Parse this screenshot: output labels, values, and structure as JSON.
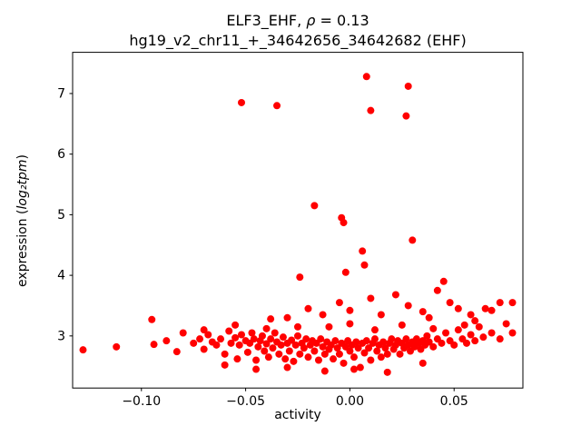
{
  "chart_data": {
    "type": "scatter",
    "title_prefix": "ELF3_EHF, ",
    "title_rho": "ρ",
    "title_suffix": " = 0.13",
    "subtitle": "hg19_v2_chr11_+_34642656_34642682 (EHF)",
    "xlabel": "activity",
    "ylabel_prefix": "expression (",
    "ylabel_math": "log₂tpm",
    "ylabel_suffix": ")",
    "xlim": [
      -0.133,
      0.083
    ],
    "ylim": [
      2.14,
      7.68
    ],
    "xticks": [
      -0.1,
      -0.05,
      0.0,
      0.05
    ],
    "xtick_labels": [
      "−0.10",
      "−0.05",
      "0.00",
      "0.05"
    ],
    "yticks": [
      3,
      4,
      5,
      6,
      7
    ],
    "ytick_labels": [
      "3",
      "4",
      "5",
      "6",
      "7"
    ],
    "grid": false,
    "legend": "none",
    "marker_color": "#ff0000",
    "marker_radius": 4,
    "points": [
      [
        -0.128,
        2.77
      ],
      [
        -0.112,
        2.82
      ],
      [
        -0.095,
        3.27
      ],
      [
        -0.094,
        2.86
      ],
      [
        -0.088,
        2.92
      ],
      [
        -0.083,
        2.74
      ],
      [
        -0.08,
        3.05
      ],
      [
        -0.075,
        2.88
      ],
      [
        -0.072,
        2.95
      ],
      [
        -0.07,
        2.78
      ],
      [
        -0.07,
        3.1
      ],
      [
        -0.068,
        3.02
      ],
      [
        -0.066,
        2.9
      ],
      [
        -0.064,
        2.85
      ],
      [
        -0.062,
        2.95
      ],
      [
        -0.06,
        2.7
      ],
      [
        -0.06,
        2.52
      ],
      [
        -0.058,
        3.08
      ],
      [
        -0.057,
        2.88
      ],
      [
        -0.055,
        2.97
      ],
      [
        -0.055,
        3.18
      ],
      [
        -0.054,
        2.62
      ],
      [
        -0.053,
        2.85
      ],
      [
        -0.052,
        3.02
      ],
      [
        -0.052,
        6.85
      ],
      [
        -0.05,
        2.92
      ],
      [
        -0.049,
        2.73
      ],
      [
        -0.048,
        2.88
      ],
      [
        -0.047,
        3.05
      ],
      [
        -0.046,
        2.95
      ],
      [
        -0.045,
        2.6
      ],
      [
        -0.045,
        2.45
      ],
      [
        -0.044,
        2.82
      ],
      [
        -0.043,
        2.92
      ],
      [
        -0.042,
        3.0
      ],
      [
        -0.041,
        2.75
      ],
      [
        -0.04,
        2.87
      ],
      [
        -0.04,
        3.12
      ],
      [
        -0.039,
        2.65
      ],
      [
        -0.038,
        2.95
      ],
      [
        -0.038,
        3.28
      ],
      [
        -0.037,
        2.8
      ],
      [
        -0.036,
        3.05
      ],
      [
        -0.035,
        2.9
      ],
      [
        -0.035,
        6.8
      ],
      [
        -0.034,
        2.7
      ],
      [
        -0.033,
        2.85
      ],
      [
        -0.032,
        2.98
      ],
      [
        -0.031,
        2.62
      ],
      [
        -0.03,
        2.88
      ],
      [
        -0.03,
        2.48
      ],
      [
        -0.03,
        3.3
      ],
      [
        -0.029,
        2.75
      ],
      [
        -0.028,
        2.93
      ],
      [
        -0.027,
        2.58
      ],
      [
        -0.026,
        2.85
      ],
      [
        -0.025,
        3.0
      ],
      [
        -0.025,
        3.15
      ],
      [
        -0.024,
        2.7
      ],
      [
        -0.024,
        3.97
      ],
      [
        -0.023,
        2.88
      ],
      [
        -0.022,
        2.8
      ],
      [
        -0.021,
        2.95
      ],
      [
        -0.02,
        2.65
      ],
      [
        -0.02,
        3.45
      ],
      [
        -0.019,
        2.85
      ],
      [
        -0.018,
        2.92
      ],
      [
        -0.017,
        2.75
      ],
      [
        -0.017,
        5.15
      ],
      [
        -0.016,
        2.88
      ],
      [
        -0.015,
        2.6
      ],
      [
        -0.014,
        2.95
      ],
      [
        -0.013,
        2.82
      ],
      [
        -0.013,
        3.35
      ],
      [
        -0.012,
        2.7
      ],
      [
        -0.012,
        2.42
      ],
      [
        -0.011,
        2.9
      ],
      [
        -0.01,
        2.78
      ],
      [
        -0.01,
        3.15
      ],
      [
        -0.009,
        2.85
      ],
      [
        -0.008,
        2.62
      ],
      [
        -0.007,
        2.92
      ],
      [
        -0.006,
        2.8
      ],
      [
        -0.005,
        2.7
      ],
      [
        -0.005,
        3.55
      ],
      [
        -0.004,
        2.88
      ],
      [
        -0.004,
        4.95
      ],
      [
        -0.003,
        2.55
      ],
      [
        -0.003,
        4.87
      ],
      [
        -0.002,
        2.82
      ],
      [
        -0.002,
        4.05
      ],
      [
        -0.001,
        2.92
      ],
      [
        0.0,
        2.75
      ],
      [
        0.0,
        3.2
      ],
      [
        0.0,
        3.42
      ],
      [
        0.001,
        2.85
      ],
      [
        0.002,
        2.65
      ],
      [
        0.002,
        2.45
      ],
      [
        0.003,
        2.9
      ],
      [
        0.004,
        2.8
      ],
      [
        0.005,
        2.48
      ],
      [
        0.006,
        2.88
      ],
      [
        0.006,
        4.4
      ],
      [
        0.007,
        2.72
      ],
      [
        0.007,
        4.17
      ],
      [
        0.008,
        2.92
      ],
      [
        0.008,
        7.28
      ],
      [
        0.009,
        2.8
      ],
      [
        0.01,
        2.6
      ],
      [
        0.01,
        3.62
      ],
      [
        0.01,
        6.72
      ],
      [
        0.011,
        2.88
      ],
      [
        0.012,
        2.95
      ],
      [
        0.012,
        3.1
      ],
      [
        0.013,
        2.75
      ],
      [
        0.014,
        2.85
      ],
      [
        0.015,
        2.65
      ],
      [
        0.015,
        3.35
      ],
      [
        0.016,
        2.9
      ],
      [
        0.017,
        2.8
      ],
      [
        0.018,
        2.7
      ],
      [
        0.018,
        2.4
      ],
      [
        0.019,
        2.88
      ],
      [
        0.02,
        2.95
      ],
      [
        0.021,
        2.78
      ],
      [
        0.022,
        2.85
      ],
      [
        0.022,
        3.68
      ],
      [
        0.023,
        2.92
      ],
      [
        0.024,
        2.7
      ],
      [
        0.025,
        2.88
      ],
      [
        0.025,
        3.18
      ],
      [
        0.026,
        2.8
      ],
      [
        0.027,
        2.95
      ],
      [
        0.027,
        6.63
      ],
      [
        0.028,
        2.85
      ],
      [
        0.028,
        3.5
      ],
      [
        0.028,
        7.12
      ],
      [
        0.029,
        2.75
      ],
      [
        0.03,
        2.9
      ],
      [
        0.03,
        4.58
      ],
      [
        0.031,
        2.82
      ],
      [
        0.032,
        2.95
      ],
      [
        0.033,
        2.88
      ],
      [
        0.034,
        2.78
      ],
      [
        0.035,
        2.92
      ],
      [
        0.035,
        2.55
      ],
      [
        0.035,
        3.4
      ],
      [
        0.036,
        2.85
      ],
      [
        0.037,
        3.0
      ],
      [
        0.038,
        2.9
      ],
      [
        0.038,
        3.3
      ],
      [
        0.04,
        2.82
      ],
      [
        0.04,
        3.12
      ],
      [
        0.042,
        2.95
      ],
      [
        0.042,
        3.75
      ],
      [
        0.044,
        2.88
      ],
      [
        0.045,
        3.9
      ],
      [
        0.046,
        3.05
      ],
      [
        0.048,
        2.92
      ],
      [
        0.048,
        3.55
      ],
      [
        0.05,
        2.85
      ],
      [
        0.052,
        3.1
      ],
      [
        0.052,
        3.45
      ],
      [
        0.054,
        2.95
      ],
      [
        0.055,
        3.18
      ],
      [
        0.056,
        2.88
      ],
      [
        0.058,
        3.02
      ],
      [
        0.058,
        3.35
      ],
      [
        0.06,
        2.92
      ],
      [
        0.06,
        3.25
      ],
      [
        0.062,
        3.15
      ],
      [
        0.064,
        2.98
      ],
      [
        0.065,
        3.45
      ],
      [
        0.068,
        3.05
      ],
      [
        0.068,
        3.42
      ],
      [
        0.072,
        2.95
      ],
      [
        0.072,
        3.55
      ],
      [
        0.075,
        3.2
      ],
      [
        0.078,
        3.05
      ],
      [
        0.078,
        3.55
      ]
    ]
  }
}
